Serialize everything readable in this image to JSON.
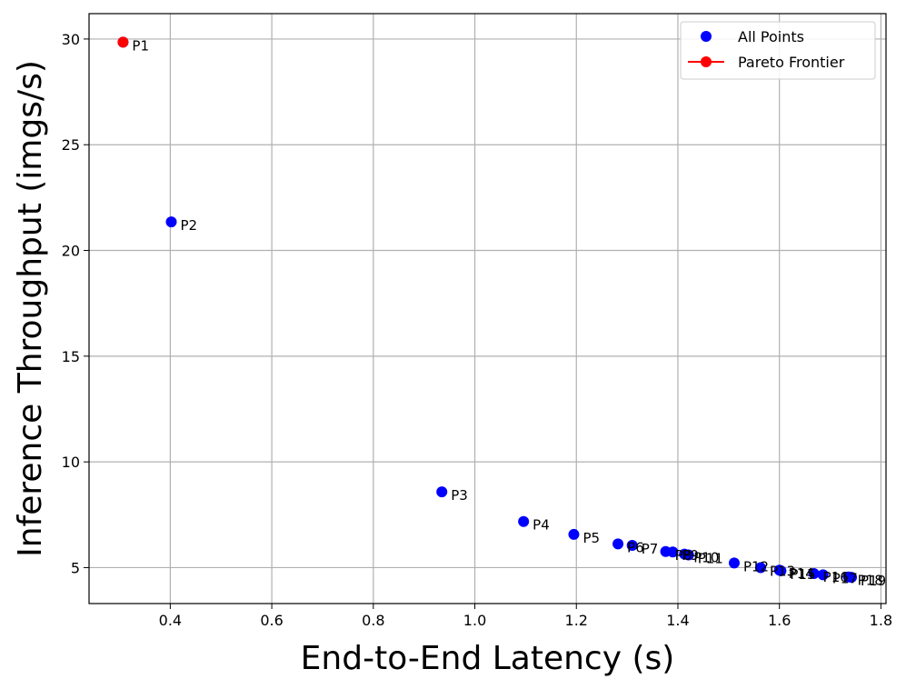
{
  "chart_data": {
    "type": "scatter",
    "xlabel": "End-to-End Latency (s)",
    "ylabel": "Inference Throughput (imgs/s)",
    "xlim": [
      0.24,
      1.81
    ],
    "ylim": [
      3.3,
      31.2
    ],
    "xticks": [
      0.4,
      0.6,
      0.8,
      1.0,
      1.2,
      1.4,
      1.6,
      1.8
    ],
    "xtick_labels": [
      "0.4",
      "0.6",
      "0.8",
      "1.0",
      "1.2",
      "1.4",
      "1.6",
      "1.8"
    ],
    "yticks": [
      5,
      10,
      15,
      20,
      25,
      30
    ],
    "ytick_labels": [
      "5",
      "10",
      "15",
      "20",
      "25",
      "30"
    ],
    "grid": true,
    "legend_position": "top-right",
    "series": [
      {
        "name": "All Points",
        "color": "#0000ff",
        "points": [
          {
            "label": "P1",
            "x": 0.307,
            "y": 29.85
          },
          {
            "label": "P2",
            "x": 0.402,
            "y": 21.35
          },
          {
            "label": "P3",
            "x": 0.935,
            "y": 8.58
          },
          {
            "label": "P4",
            "x": 1.096,
            "y": 7.18
          },
          {
            "label": "P5",
            "x": 1.195,
            "y": 6.57
          },
          {
            "label": "P6",
            "x": 1.282,
            "y": 6.12
          },
          {
            "label": "P7",
            "x": 1.31,
            "y": 6.05
          },
          {
            "label": "P8",
            "x": 1.376,
            "y": 5.76
          },
          {
            "label": "P9",
            "x": 1.39,
            "y": 5.74
          },
          {
            "label": "P10",
            "x": 1.413,
            "y": 5.64
          },
          {
            "label": "P11",
            "x": 1.421,
            "y": 5.6
          },
          {
            "label": "P12",
            "x": 1.511,
            "y": 5.22
          },
          {
            "label": "P13",
            "x": 1.563,
            "y": 5.0
          },
          {
            "label": "P14",
            "x": 1.6,
            "y": 4.88
          },
          {
            "label": "P15",
            "x": 1.603,
            "y": 4.85
          },
          {
            "label": "P16",
            "x": 1.668,
            "y": 4.72
          },
          {
            "label": "P17",
            "x": 1.686,
            "y": 4.66
          },
          {
            "label": "P18",
            "x": 1.736,
            "y": 4.56
          },
          {
            "label": "P19",
            "x": 1.742,
            "y": 4.54
          }
        ]
      },
      {
        "name": "Pareto Frontier",
        "color": "#ff0000",
        "points": [
          {
            "label": "P1",
            "x": 0.307,
            "y": 29.85
          }
        ]
      }
    ]
  }
}
